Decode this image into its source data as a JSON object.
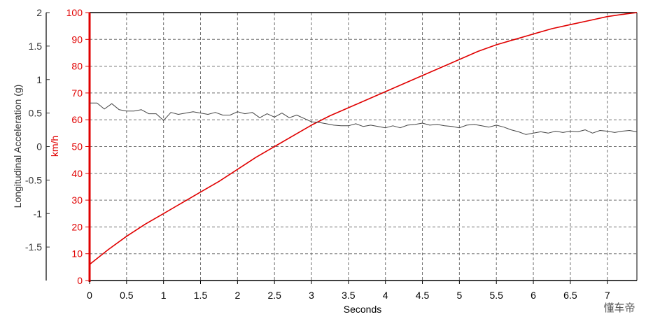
{
  "chart_data": {
    "type": "line",
    "xlabel": "Seconds",
    "xlim": [
      0,
      7.4
    ],
    "x_ticks": [
      0,
      0.5,
      1,
      1.5,
      2,
      2.5,
      3,
      3.5,
      4,
      4.5,
      5,
      5.5,
      6,
      6.5,
      7
    ],
    "x_tick_labels": [
      "0",
      "0.5",
      "1",
      "1.5",
      "2",
      "2.5",
      "3",
      "3.5",
      "4",
      "4.5",
      "5",
      "5.5",
      "6",
      "6.5",
      "7"
    ],
    "grid": true,
    "axes": {
      "left_outer": {
        "label": "Longitudinal Acceleration (g)",
        "ylim": [
          -2,
          2
        ],
        "ticks": [
          2,
          1.5,
          1,
          0.5,
          0,
          -0.5,
          -1,
          -1.5
        ],
        "tick_labels": [
          "2",
          "1.5",
          "1",
          "0.5",
          "0",
          "-0.5",
          "-1",
          "-1.5"
        ],
        "color": "#333333"
      },
      "left_inner": {
        "label": "km/h",
        "ylim": [
          0,
          100
        ],
        "ticks": [
          0,
          10,
          20,
          30,
          40,
          50,
          60,
          70,
          80,
          90,
          100
        ],
        "tick_labels": [
          "0",
          "10",
          "20",
          "30",
          "40",
          "50",
          "60",
          "70",
          "80",
          "90",
          "100"
        ],
        "color": "#e00000"
      }
    },
    "series": [
      {
        "axis": "left_inner",
        "color": "#e00000",
        "x": [
          0,
          0.25,
          0.5,
          0.75,
          1,
          1.25,
          1.5,
          1.75,
          2,
          2.25,
          2.5,
          2.75,
          3,
          3.25,
          3.5,
          3.75,
          4,
          4.25,
          4.5,
          4.75,
          5,
          5.25,
          5.5,
          5.75,
          6,
          6.25,
          6.5,
          6.75,
          7,
          7.25,
          7.4
        ],
        "values": [
          6,
          11.5,
          16.5,
          21,
          25,
          29,
          33,
          37,
          41.5,
          46,
          50,
          54,
          58,
          61.5,
          64.5,
          67.5,
          70.5,
          73.5,
          76.5,
          79.5,
          82.5,
          85.5,
          88,
          90,
          92,
          94,
          95.5,
          97,
          98.5,
          99.5,
          100
        ]
      },
      {
        "axis": "left_outer",
        "color": "#444444",
        "x": [
          0,
          0.1,
          0.2,
          0.3,
          0.4,
          0.5,
          0.6,
          0.7,
          0.8,
          0.9,
          1.0,
          1.1,
          1.2,
          1.3,
          1.4,
          1.5,
          1.6,
          1.7,
          1.8,
          1.9,
          2.0,
          2.1,
          2.2,
          2.3,
          2.4,
          2.5,
          2.6,
          2.7,
          2.8,
          2.9,
          3.0,
          3.1,
          3.2,
          3.3,
          3.4,
          3.5,
          3.6,
          3.7,
          3.8,
          3.9,
          4.0,
          4.1,
          4.2,
          4.3,
          4.4,
          4.5,
          4.6,
          4.7,
          4.8,
          4.9,
          5.0,
          5.1,
          5.2,
          5.3,
          5.4,
          5.5,
          5.6,
          5.7,
          5.8,
          5.9,
          6.0,
          6.1,
          6.2,
          6.3,
          6.4,
          6.5,
          6.6,
          6.7,
          6.8,
          6.9,
          7.0,
          7.1,
          7.2,
          7.3,
          7.4
        ],
        "values": [
          0.65,
          0.65,
          0.56,
          0.64,
          0.55,
          0.53,
          0.53,
          0.55,
          0.49,
          0.49,
          0.39,
          0.51,
          0.48,
          0.5,
          0.52,
          0.5,
          0.48,
          0.51,
          0.47,
          0.47,
          0.52,
          0.49,
          0.51,
          0.43,
          0.49,
          0.44,
          0.5,
          0.43,
          0.47,
          0.42,
          0.37,
          0.36,
          0.34,
          0.32,
          0.31,
          0.31,
          0.34,
          0.3,
          0.32,
          0.3,
          0.28,
          0.31,
          0.28,
          0.32,
          0.33,
          0.35,
          0.32,
          0.33,
          0.31,
          0.3,
          0.28,
          0.32,
          0.33,
          0.31,
          0.29,
          0.32,
          0.29,
          0.25,
          0.22,
          0.18,
          0.2,
          0.22,
          0.2,
          0.23,
          0.21,
          0.23,
          0.22,
          0.25,
          0.2,
          0.24,
          0.23,
          0.21,
          0.23,
          0.24,
          0.22
        ]
      }
    ]
  },
  "watermark": "懂车帝"
}
